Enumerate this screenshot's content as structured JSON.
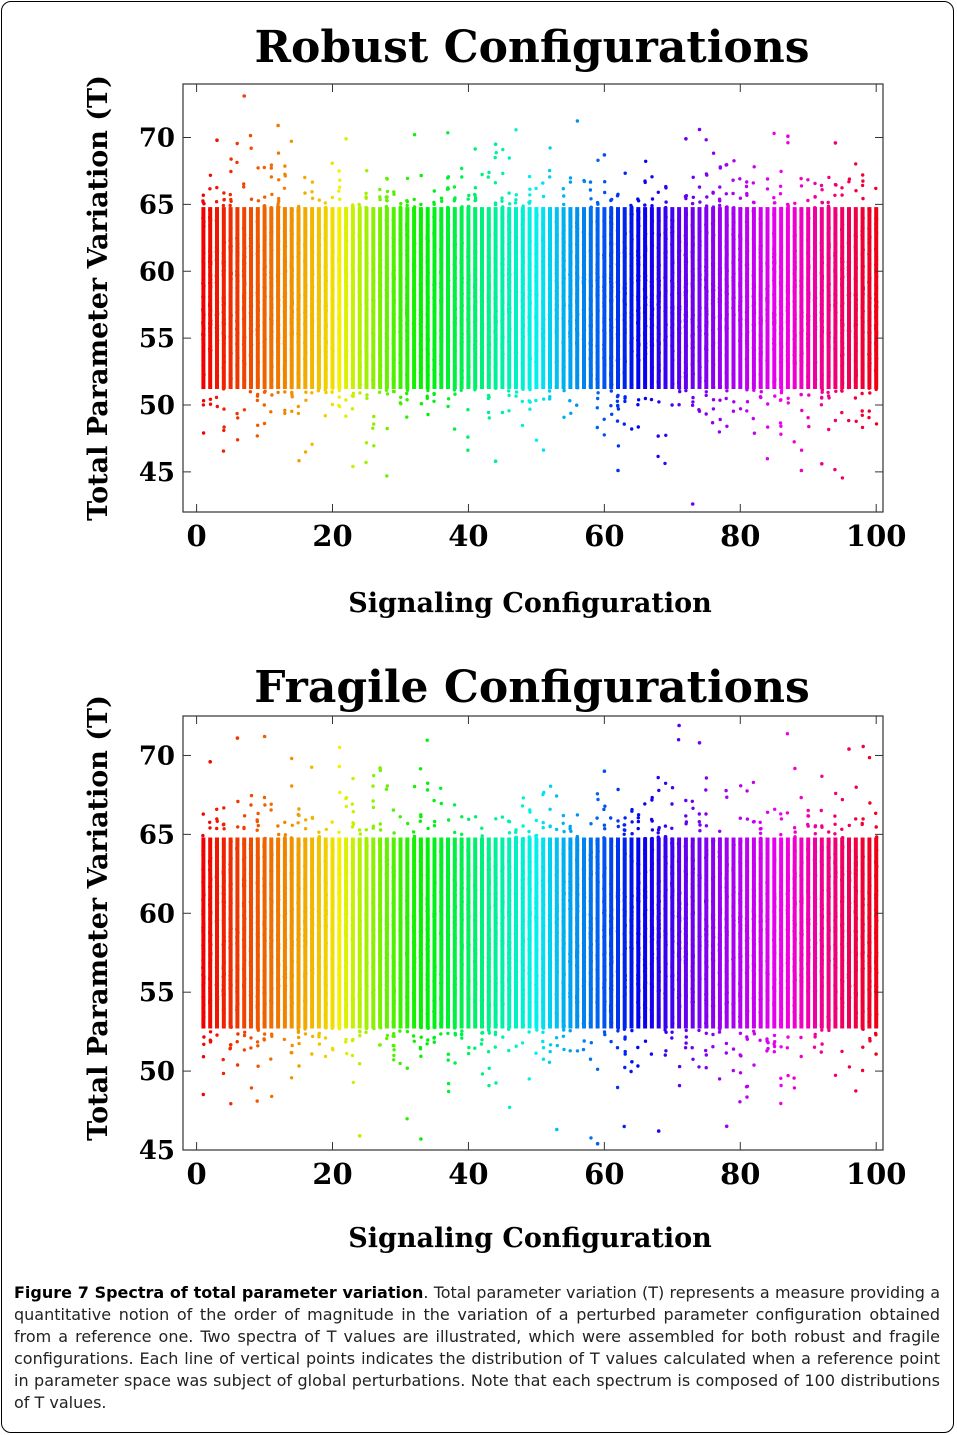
{
  "chart_data": [
    {
      "type": "scatter",
      "title": "Robust Configurations",
      "xlabel": "Signaling Configuration",
      "ylabel": "Total Parameter Variation (T)",
      "xlim": [
        -2,
        101
      ],
      "ylim": [
        42,
        74
      ],
      "xticks": [
        0,
        20,
        40,
        60,
        80,
        100
      ],
      "yticks": [
        45,
        50,
        55,
        60,
        65,
        70
      ],
      "grid": false,
      "legend": "none",
      "color_scheme": "rainbow hue by configuration index (red → orange → yellow → green → cyan → blue → violet → magenta → red)",
      "x_values": "configurations 1..100",
      "series_summary": {
        "dense_band": [
          50,
          66
        ],
        "outliers": [
          {
            "x": 7,
            "y": 73.1
          },
          {
            "x": 12,
            "y": 70.9
          },
          {
            "x": 74,
            "y": 70.6
          },
          {
            "x": 87,
            "y": 70.1
          },
          {
            "x": 22,
            "y": 69.9
          },
          {
            "x": 3,
            "y": 69.8
          },
          {
            "x": 44,
            "y": 69.5
          },
          {
            "x": 94,
            "y": 69.6
          },
          {
            "x": 72,
            "y": 69.9
          },
          {
            "x": 60,
            "y": 68.7
          },
          {
            "x": 89,
            "y": 45.1
          },
          {
            "x": 62,
            "y": 45.1
          },
          {
            "x": 23,
            "y": 45.4
          },
          {
            "x": 92,
            "y": 45.6
          },
          {
            "x": 44,
            "y": 45.8
          },
          {
            "x": 73,
            "y": 42.6
          }
        ]
      }
    },
    {
      "type": "scatter",
      "title": "Fragile Configurations",
      "xlabel": "Signaling Configuration",
      "ylabel": "Total Parameter Variation (T)",
      "xlim": [
        -2,
        101
      ],
      "ylim": [
        45,
        72.5
      ],
      "xticks": [
        0,
        20,
        40,
        60,
        80,
        100
      ],
      "yticks": [
        45,
        50,
        55,
        60,
        65,
        70
      ],
      "grid": false,
      "legend": "none",
      "color_scheme": "rainbow hue by configuration index (red → orange → yellow → green → cyan → blue → violet → magenta → red)",
      "x_values": "configurations 1..100",
      "series_summary": {
        "dense_band": [
          51.5,
          66
        ],
        "outliers": [
          {
            "x": 71,
            "y": 71.9
          },
          {
            "x": 6,
            "y": 71.1
          },
          {
            "x": 10,
            "y": 71.2
          },
          {
            "x": 74,
            "y": 70.8
          },
          {
            "x": 96,
            "y": 70.4
          },
          {
            "x": 2,
            "y": 69.6
          },
          {
            "x": 21,
            "y": 69.3
          },
          {
            "x": 27,
            "y": 69.2
          },
          {
            "x": 60,
            "y": 69.0
          },
          {
            "x": 33,
            "y": 45.7
          },
          {
            "x": 24,
            "y": 45.9
          },
          {
            "x": 59,
            "y": 45.4
          },
          {
            "x": 68,
            "y": 46.2
          },
          {
            "x": 53,
            "y": 46.3
          },
          {
            "x": 78,
            "y": 46.5
          }
        ]
      }
    }
  ],
  "caption": {
    "label": "Figure 7 Spectra of total parameter variation",
    "text": ". Total parameter variation (T) represents a measure providing a quantitative notion of the order of magnitude in the variation of a perturbed parameter configuration obtained from a reference one. Two spectra of T values are illustrated, which were assembled for both robust and fragile configurations. Each line of vertical points indicates the distribution of T values calculated when a reference point in parameter space was subject of global perturbations. Note that each spectrum is composed of 100 distributions of T values."
  }
}
